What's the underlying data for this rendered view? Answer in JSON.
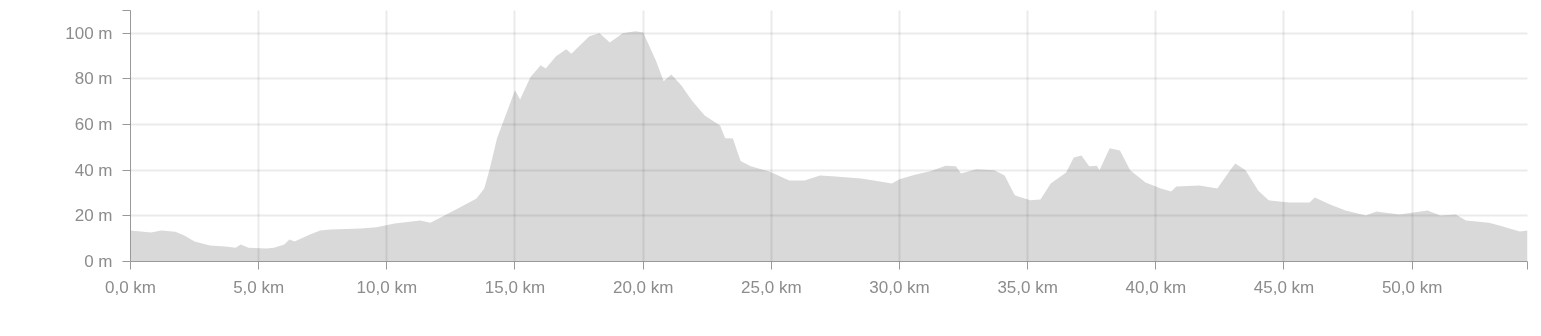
{
  "chart_data": {
    "type": "area",
    "color": "#d9d9d9",
    "grid": true,
    "xlim": [
      0,
      54.5
    ],
    "ylim": [
      0,
      110
    ],
    "xticks": [
      {
        "value": 0,
        "label": "0,0 km"
      },
      {
        "value": 5,
        "label": "5,0 km"
      },
      {
        "value": 10,
        "label": "10,0 km"
      },
      {
        "value": 15,
        "label": "15,0 km"
      },
      {
        "value": 20,
        "label": "20,0 km"
      },
      {
        "value": 25,
        "label": "25,0 km"
      },
      {
        "value": 30,
        "label": "30,0 km"
      },
      {
        "value": 35,
        "label": "35,0 km"
      },
      {
        "value": 40,
        "label": "40,0 km"
      },
      {
        "value": 45,
        "label": "45,0 km"
      },
      {
        "value": 50,
        "label": "50,0 km"
      },
      {
        "value": 54.5,
        "label": null
      }
    ],
    "yticks": [
      {
        "value": 0,
        "label": "0 m"
      },
      {
        "value": 20,
        "label": "20 m"
      },
      {
        "value": 40,
        "label": "40 m"
      },
      {
        "value": 60,
        "label": "60 m"
      },
      {
        "value": 80,
        "label": "80 m"
      },
      {
        "value": 100,
        "label": "100 m"
      },
      {
        "value": 110,
        "label": null
      }
    ],
    "x": [
      0,
      0.8,
      1.2,
      1.75,
      2.1,
      2.5,
      3.1,
      3.7,
      4.1,
      4.3,
      4.6,
      5.3,
      5.6,
      6.0,
      6.2,
      6.4,
      7.0,
      7.4,
      7.8,
      9.0,
      9.6,
      10.3,
      11.3,
      11.7,
      12.1,
      12.9,
      13.5,
      13.8,
      14.0,
      14.3,
      14.6,
      15.0,
      15.2,
      15.6,
      16.0,
      16.2,
      16.6,
      17.0,
      17.2,
      17.9,
      18.3,
      18.7,
      19.2,
      19.7,
      20.0,
      20.5,
      20.8,
      21.1,
      21.5,
      21.9,
      22.4,
      23.0,
      23.2,
      23.5,
      23.8,
      24.2,
      24.5,
      24.9,
      25.7,
      26.3,
      26.9,
      27.5,
      28.5,
      29.3,
      29.7,
      30.0,
      30.6,
      31.2,
      31.8,
      32.2,
      32.4,
      33.0,
      33.7,
      34.1,
      34.5,
      35.1,
      35.5,
      35.9,
      36.5,
      36.8,
      37.1,
      37.4,
      37.7,
      37.8,
      38.2,
      38.6,
      39.0,
      39.6,
      40.2,
      40.6,
      40.8,
      41.7,
      42.4,
      42.9,
      43.1,
      43.5,
      44.0,
      44.4,
      45.2,
      46.0,
      46.2,
      46.8,
      47.4,
      48.2,
      48.6,
      49.5,
      50.6,
      51.1,
      51.7,
      52.1,
      53.0,
      53.4,
      54.2,
      54.5
    ],
    "values": [
      13.6,
      12.7,
      13.6,
      13,
      11.4,
      8.8,
      7,
      6.6,
      6,
      7.5,
      6,
      5.7,
      6,
      7.5,
      9.6,
      8.8,
      11.8,
      13.6,
      14,
      14.5,
      15,
      16.7,
      18,
      17,
      19.3,
      24,
      27.6,
      32,
      40,
      54,
      63,
      75,
      71,
      80.7,
      86,
      84.6,
      90,
      93,
      91,
      98.7,
      100,
      96,
      100,
      100.9,
      100.4,
      88,
      79,
      82,
      77,
      70.6,
      64,
      59.6,
      54,
      53.9,
      44,
      41.7,
      40.8,
      39.5,
      35.5,
      35.5,
      37.7,
      37.3,
      36.4,
      35,
      34.2,
      36,
      38,
      39.5,
      42,
      41.7,
      38.6,
      40.4,
      40,
      37.7,
      29,
      26.8,
      27.2,
      34.2,
      39,
      45.6,
      46.5,
      41.7,
      42,
      40,
      49.6,
      48.7,
      40,
      34.6,
      32,
      30.7,
      32.9,
      33.3,
      32,
      40,
      43,
      40,
      31,
      26.8,
      25.9,
      25.9,
      28,
      25,
      22.4,
      20.2,
      21.9,
      20.6,
      22.4,
      20.2,
      20.6,
      18,
      17,
      15.8,
      13.2,
      13.6
    ]
  }
}
